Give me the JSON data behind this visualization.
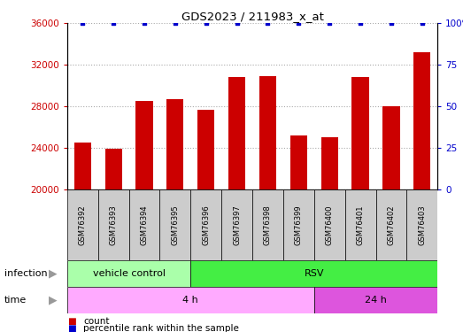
{
  "title": "GDS2023 / 211983_x_at",
  "samples": [
    "GSM76392",
    "GSM76393",
    "GSM76394",
    "GSM76395",
    "GSM76396",
    "GSM76397",
    "GSM76398",
    "GSM76399",
    "GSM76400",
    "GSM76401",
    "GSM76402",
    "GSM76403"
  ],
  "counts": [
    24500,
    23900,
    28500,
    28700,
    27700,
    30800,
    30900,
    25200,
    25000,
    30800,
    28000,
    33200
  ],
  "percentile_ranks": [
    100,
    100,
    100,
    100,
    100,
    100,
    100,
    100,
    100,
    100,
    100,
    100
  ],
  "ylim_left": [
    20000,
    36000
  ],
  "ylim_right": [
    0,
    100
  ],
  "yticks_left": [
    20000,
    24000,
    28000,
    32000,
    36000
  ],
  "yticks_right": [
    0,
    25,
    50,
    75,
    100
  ],
  "bar_color": "#cc0000",
  "percentile_color": "#0000cc",
  "infection_labels": [
    {
      "label": "vehicle control",
      "start": 0,
      "end": 4,
      "color": "#aaffaa"
    },
    {
      "label": "RSV",
      "start": 4,
      "end": 12,
      "color": "#44ee44"
    }
  ],
  "time_labels": [
    {
      "label": "4 h",
      "start": 0,
      "end": 8,
      "color": "#ffaaff"
    },
    {
      "label": "24 h",
      "start": 8,
      "end": 12,
      "color": "#dd55dd"
    }
  ],
  "legend_items": [
    {
      "label": "count",
      "color": "#cc0000"
    },
    {
      "label": "percentile rank within the sample",
      "color": "#0000cc"
    }
  ],
  "grid_color": "#aaaaaa",
  "tick_label_bg": "#cccccc",
  "arrow_color": "#999999"
}
